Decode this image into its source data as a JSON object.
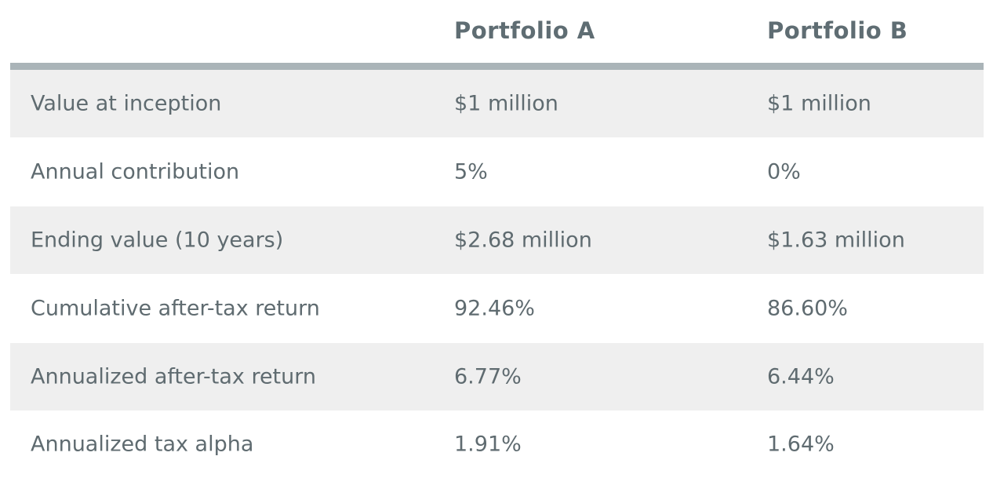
{
  "table": {
    "columns": [
      "",
      "Portfolio A",
      "Portfolio B"
    ],
    "rows": [
      [
        "Value at inception",
        "$1 million",
        "$1 million"
      ],
      [
        "Annual contribution",
        "5%",
        "0%"
      ],
      [
        "Ending value (10 years)",
        "$2.68 million",
        "$1.63 million"
      ],
      [
        "Cumulative after-tax return",
        "92.46%",
        "86.60%"
      ],
      [
        "Annualized after-tax return",
        "6.77%",
        "6.44%"
      ],
      [
        "Annualized tax alpha",
        "1.91%",
        "1.64%"
      ]
    ]
  }
}
